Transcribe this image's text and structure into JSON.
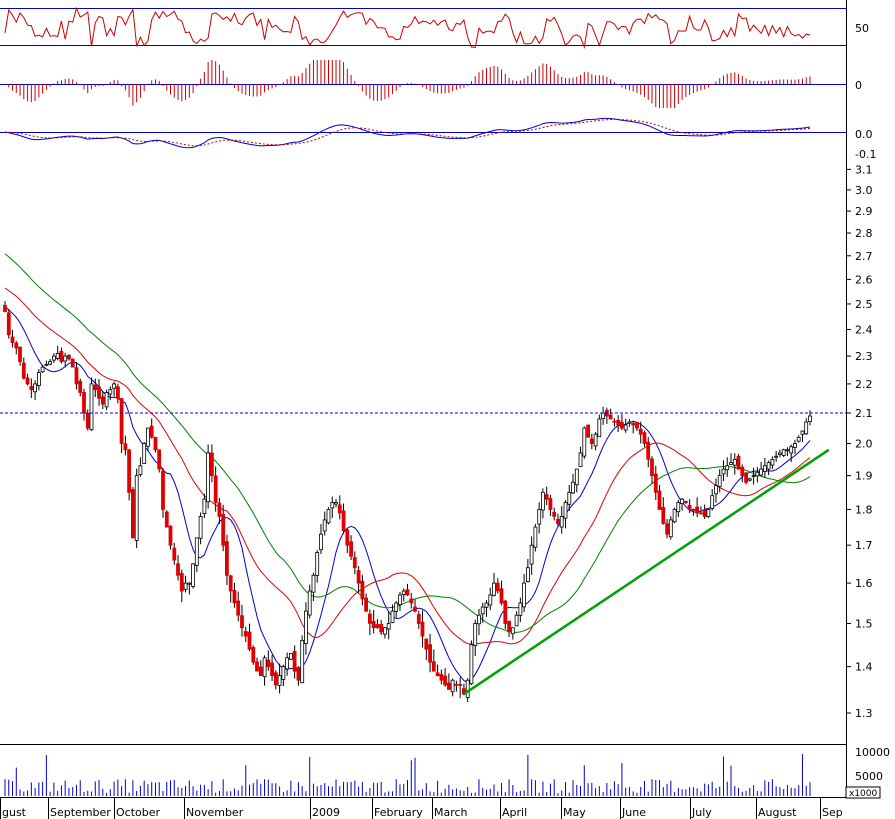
{
  "chart_data": {
    "type": "candlestick",
    "colors": {
      "up": "#ffffff",
      "down": "#e00000",
      "outline": "#000000",
      "ma_fast": "#0000cc",
      "ma_mid": "#e00000",
      "ma_slow": "#008000",
      "trend": "#00a000",
      "resistance": "#0000cc",
      "indicator": "#cc0000",
      "hist": "#cc0000"
    },
    "price_axis": {
      "ticks": [
        "1.3",
        "1.4",
        "1.5",
        "1.6",
        "1.7",
        "1.8",
        "1.9",
        "2.0",
        "2.1",
        "2.2",
        "2.3",
        "2.4",
        "2.5",
        "2.6",
        "2.7",
        "2.8",
        "2.9",
        "3.0",
        "3.1"
      ],
      "ylim": [
        1.3,
        3.1
      ],
      "scale": "log"
    },
    "month_labels": [
      "gust",
      "September",
      "October",
      "November",
      "2009",
      "February",
      "March",
      "April",
      "May",
      "June",
      "July",
      "August",
      "Sep"
    ],
    "resistance_level": 2.1,
    "trend_line": {
      "from_index": 122,
      "from_price": 1.34,
      "to_index": 219,
      "to_price": 1.98
    },
    "closes": [
      2.47,
      2.38,
      2.35,
      2.33,
      2.28,
      2.22,
      2.2,
      2.18,
      2.2,
      2.24,
      2.26,
      2.27,
      2.28,
      2.3,
      2.31,
      2.28,
      2.3,
      2.29,
      2.26,
      2.2,
      2.17,
      2.1,
      2.05,
      2.2,
      2.18,
      2.15,
      2.13,
      2.17,
      2.18,
      2.2,
      2.15,
      2.0,
      1.98,
      1.85,
      1.72,
      1.9,
      1.93,
      2.0,
      2.05,
      2.02,
      1.98,
      1.92,
      1.8,
      1.75,
      1.7,
      1.66,
      1.62,
      1.58,
      1.6,
      1.6,
      1.65,
      1.72,
      1.78,
      1.83,
      1.97,
      1.9,
      1.82,
      1.78,
      1.7,
      1.62,
      1.58,
      1.55,
      1.52,
      1.49,
      1.47,
      1.44,
      1.41,
      1.39,
      1.38,
      1.42,
      1.4,
      1.38,
      1.36,
      1.38,
      1.4,
      1.42,
      1.43,
      1.39,
      1.37,
      1.46,
      1.53,
      1.58,
      1.62,
      1.68,
      1.73,
      1.77,
      1.8,
      1.82,
      1.82,
      1.79,
      1.74,
      1.7,
      1.67,
      1.64,
      1.6,
      1.56,
      1.53,
      1.5,
      1.49,
      1.49,
      1.48,
      1.49,
      1.5,
      1.53,
      1.55,
      1.57,
      1.58,
      1.57,
      1.55,
      1.53,
      1.5,
      1.47,
      1.44,
      1.41,
      1.39,
      1.38,
      1.37,
      1.36,
      1.35,
      1.37,
      1.36,
      1.36,
      1.34,
      1.37,
      1.45,
      1.5,
      1.52,
      1.54,
      1.55,
      1.57,
      1.6,
      1.58,
      1.55,
      1.5,
      1.48,
      1.49,
      1.52,
      1.55,
      1.6,
      1.64,
      1.7,
      1.75,
      1.8,
      1.85,
      1.83,
      1.8,
      1.78,
      1.76,
      1.78,
      1.82,
      1.85,
      1.88,
      1.92,
      1.97,
      2.05,
      2.02,
      2.0,
      2.03,
      2.08,
      2.1,
      2.09,
      2.08,
      2.07,
      2.06,
      2.05,
      2.06,
      2.07,
      2.06,
      2.05,
      2.03,
      2.0,
      1.95,
      1.9,
      1.85,
      1.8,
      1.76,
      1.73,
      1.77,
      1.8,
      1.82,
      1.83,
      1.82,
      1.8,
      1.8,
      1.79,
      1.79,
      1.78,
      1.8,
      1.84,
      1.87,
      1.9,
      1.92,
      1.93,
      1.94,
      1.95,
      1.92,
      1.9,
      1.88,
      1.89,
      1.9,
      1.91,
      1.92,
      1.93,
      1.94,
      1.95,
      1.96,
      1.97,
      1.98,
      1.98,
      1.99,
      2.0,
      2.02,
      2.04,
      2.07,
      2.09
    ]
  },
  "volume_axis": {
    "ticks": [
      "10000",
      "5000"
    ],
    "unit": "x1000"
  },
  "rsi_panel": {
    "ticks": [
      "50"
    ]
  },
  "hist_panel": {
    "ticks": [
      "0"
    ]
  },
  "macd_panel": {
    "ticks": [
      "0.0",
      "-0.1"
    ]
  }
}
